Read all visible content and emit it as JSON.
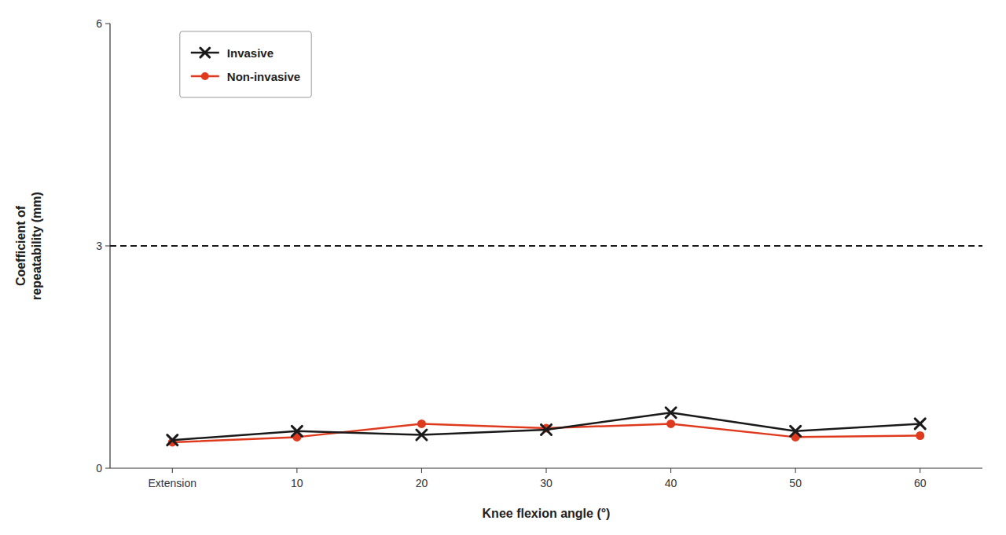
{
  "chart_data": {
    "type": "line",
    "categories": [
      "Extension",
      "10",
      "20",
      "30",
      "40",
      "50",
      "60"
    ],
    "series": [
      {
        "name": "Invasive",
        "color": "#1a1a1a",
        "marker": "x",
        "line_style": "solid",
        "values": [
          0.38,
          0.5,
          0.45,
          0.52,
          0.75,
          0.5,
          0.6
        ]
      },
      {
        "name": "Non-invasive",
        "color": "#e03a1e",
        "marker": "circle",
        "line_style": "solid",
        "values": [
          0.35,
          0.42,
          0.6,
          0.54,
          0.6,
          0.42,
          0.44
        ]
      }
    ],
    "hlines": [
      {
        "value": 3.0,
        "color": "#1a1a1a",
        "line_style": "dashed"
      }
    ],
    "x_label": "Knee flexion angle (°)",
    "y_label": "Coefficient of\nrepeatability (mm)",
    "ylim": [
      0,
      6
    ],
    "yticks": [
      0,
      3,
      6
    ],
    "grid": false,
    "legend": "upper left"
  }
}
